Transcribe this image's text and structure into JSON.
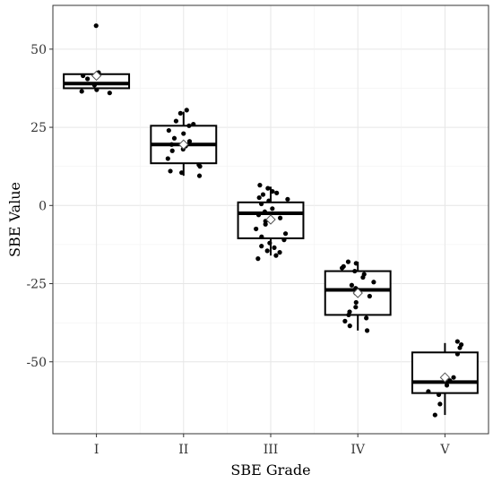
{
  "chart_data": {
    "type": "boxplot",
    "xlabel": "SBE Grade",
    "ylabel": "SBE Value",
    "categories": [
      "I",
      "II",
      "III",
      "IV",
      "V"
    ],
    "ylim": [
      -73,
      64
    ],
    "yticks": [
      -50,
      -25,
      0,
      25,
      50
    ],
    "ytick_labels": [
      "-50",
      "-25",
      "0",
      "25",
      "50"
    ],
    "grid": true,
    "legend": "none",
    "boxes": [
      {
        "category": "I",
        "whisker_low": 37,
        "q1": 37.5,
        "median": 39,
        "q3": 42,
        "whisker_high": 42,
        "mean": 41.5
      },
      {
        "category": "II",
        "whisker_low": 9.5,
        "q1": 13.5,
        "median": 19.5,
        "q3": 25.5,
        "whisker_high": 30,
        "mean": 19.5
      },
      {
        "category": "III",
        "whisker_low": -16,
        "q1": -10.5,
        "median": -2.5,
        "q3": 1,
        "whisker_high": 6,
        "mean": -4.5
      },
      {
        "category": "IV",
        "whisker_low": -40,
        "q1": -35,
        "median": -27,
        "q3": -21,
        "whisker_high": -18,
        "mean": -28
      },
      {
        "category": "V",
        "whisker_low": -67,
        "q1": -60,
        "median": -56.5,
        "q3": -47,
        "whisker_high": -44,
        "mean": -55
      }
    ],
    "points": [
      {
        "category": "I",
        "values": [
          57.5,
          42.5,
          41.5,
          40.5,
          38.5,
          37,
          36.5,
          36
        ]
      },
      {
        "category": "II",
        "values": [
          30.5,
          29.5,
          27,
          26,
          25.5,
          24,
          23,
          21.5,
          20.5,
          19.5,
          19,
          18,
          17.5,
          15,
          13,
          12.5,
          11,
          10.5,
          9.5
        ]
      },
      {
        "category": "III",
        "values": [
          6.5,
          5.5,
          4.5,
          4,
          3.5,
          2.5,
          2,
          1.5,
          0.5,
          -1,
          -2,
          -3,
          -4,
          -5,
          -6,
          -7.5,
          -9,
          -10,
          -11,
          -12,
          -13,
          -13.5,
          -14.5,
          -15,
          -16,
          -17
        ]
      },
      {
        "category": "IV",
        "values": [
          -18,
          -18.5,
          -19.5,
          -20,
          -21,
          -22,
          -23,
          -24.5,
          -25.5,
          -26.5,
          -27,
          -28,
          -29,
          -31,
          -32.5,
          -34,
          -35,
          -36,
          -37,
          -38.5,
          -40
        ]
      },
      {
        "category": "V",
        "values": [
          -43.5,
          -44.5,
          -45.5,
          -47.5,
          -55,
          -56,
          -57.5,
          -59.5,
          -60.5,
          -63.5,
          -67
        ]
      }
    ]
  }
}
